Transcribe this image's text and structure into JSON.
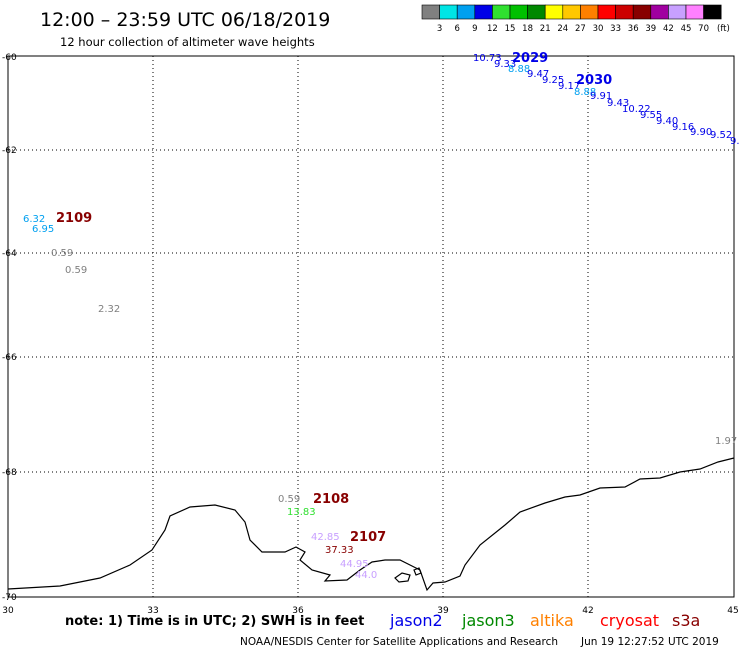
{
  "header": {
    "title": "12:00 – 23:59 UTC 06/18/2019",
    "subtitle": "12 hour collection of altimeter wave heights"
  },
  "colorbar": {
    "labels": [
      "3",
      "6",
      "9",
      "12",
      "15",
      "18",
      "21",
      "24",
      "27",
      "30",
      "33",
      "36",
      "39",
      "42",
      "45",
      "70"
    ],
    "colors": [
      "#808080",
      "#00e5e5",
      "#00a0f0",
      "#0000e8",
      "#30e030",
      "#00c000",
      "#008800",
      "#ffff00",
      "#ffc800",
      "#ff8000",
      "#ff0000",
      "#cc0000",
      "#880000",
      "#a000a0",
      "#c8a0ff",
      "#ff80ff",
      "#000000"
    ],
    "unit": "(ft)"
  },
  "axes": {
    "x_ticks": [
      "30",
      "33",
      "36",
      "39",
      "42",
      "45"
    ],
    "y_ticks": [
      "-60",
      "-62",
      "-64",
      "-66",
      "-68",
      "-70"
    ]
  },
  "passes": [
    {
      "label": "2029",
      "color": "#0000e8"
    },
    {
      "label": "2030",
      "color": "#0000e8"
    },
    {
      "label": "2109",
      "color": "#880000"
    },
    {
      "label": "2108",
      "color": "#880000"
    },
    {
      "label": "2107",
      "color": "#880000"
    }
  ],
  "readings": [
    {
      "text": "10.73",
      "color": "#0000e8"
    },
    {
      "text": "9.33",
      "color": "#0000e8"
    },
    {
      "text": "8.88",
      "color": "#00a0f0"
    },
    {
      "text": "9.47",
      "color": "#0000e8"
    },
    {
      "text": "9.25",
      "color": "#0000e8"
    },
    {
      "text": "9.17",
      "color": "#0000e8"
    },
    {
      "text": "8.88",
      "color": "#00a0f0"
    },
    {
      "text": "9.91",
      "color": "#0000e8"
    },
    {
      "text": "9.43",
      "color": "#0000e8"
    },
    {
      "text": "10.22",
      "color": "#0000e8"
    },
    {
      "text": "9.55",
      "color": "#0000e8"
    },
    {
      "text": "9.40",
      "color": "#0000e8"
    },
    {
      "text": "9.16",
      "color": "#0000e8"
    },
    {
      "text": "9.90",
      "color": "#0000e8"
    },
    {
      "text": "9.52",
      "color": "#0000e8"
    },
    {
      "text": "9.",
      "color": "#0000e8"
    },
    {
      "text": "6.32",
      "color": "#00a0f0"
    },
    {
      "text": "6.95",
      "color": "#00a0f0"
    },
    {
      "text": "0.59",
      "color": "#808080"
    },
    {
      "text": "0.59",
      "color": "#808080"
    },
    {
      "text": "2.32",
      "color": "#808080"
    },
    {
      "text": "1.97",
      "color": "#808080"
    },
    {
      "text": "0.59",
      "color": "#808080"
    },
    {
      "text": "13.83",
      "color": "#30e030"
    },
    {
      "text": "42.85",
      "color": "#c8a0ff"
    },
    {
      "text": "37.33",
      "color": "#880000"
    },
    {
      "text": "44.95",
      "color": "#c8a0ff"
    },
    {
      "text": "44.0",
      "color": "#c8a0ff"
    }
  ],
  "footer": {
    "note": "note:  1) Time is in UTC;  2) SWH is in feet",
    "satellites": [
      {
        "name": "jason2",
        "color": "#0000e8"
      },
      {
        "name": "jason3",
        "color": "#008800"
      },
      {
        "name": "altika",
        "color": "#ff8000"
      },
      {
        "name": "cryosat",
        "color": "#ff0000"
      },
      {
        "name": "s3a",
        "color": "#880000"
      }
    ],
    "credit": "NOAA/NESDIS Center for Satellite Applications and Research",
    "timestamp": "Jun 19 12:27:52 UTC 2019"
  }
}
